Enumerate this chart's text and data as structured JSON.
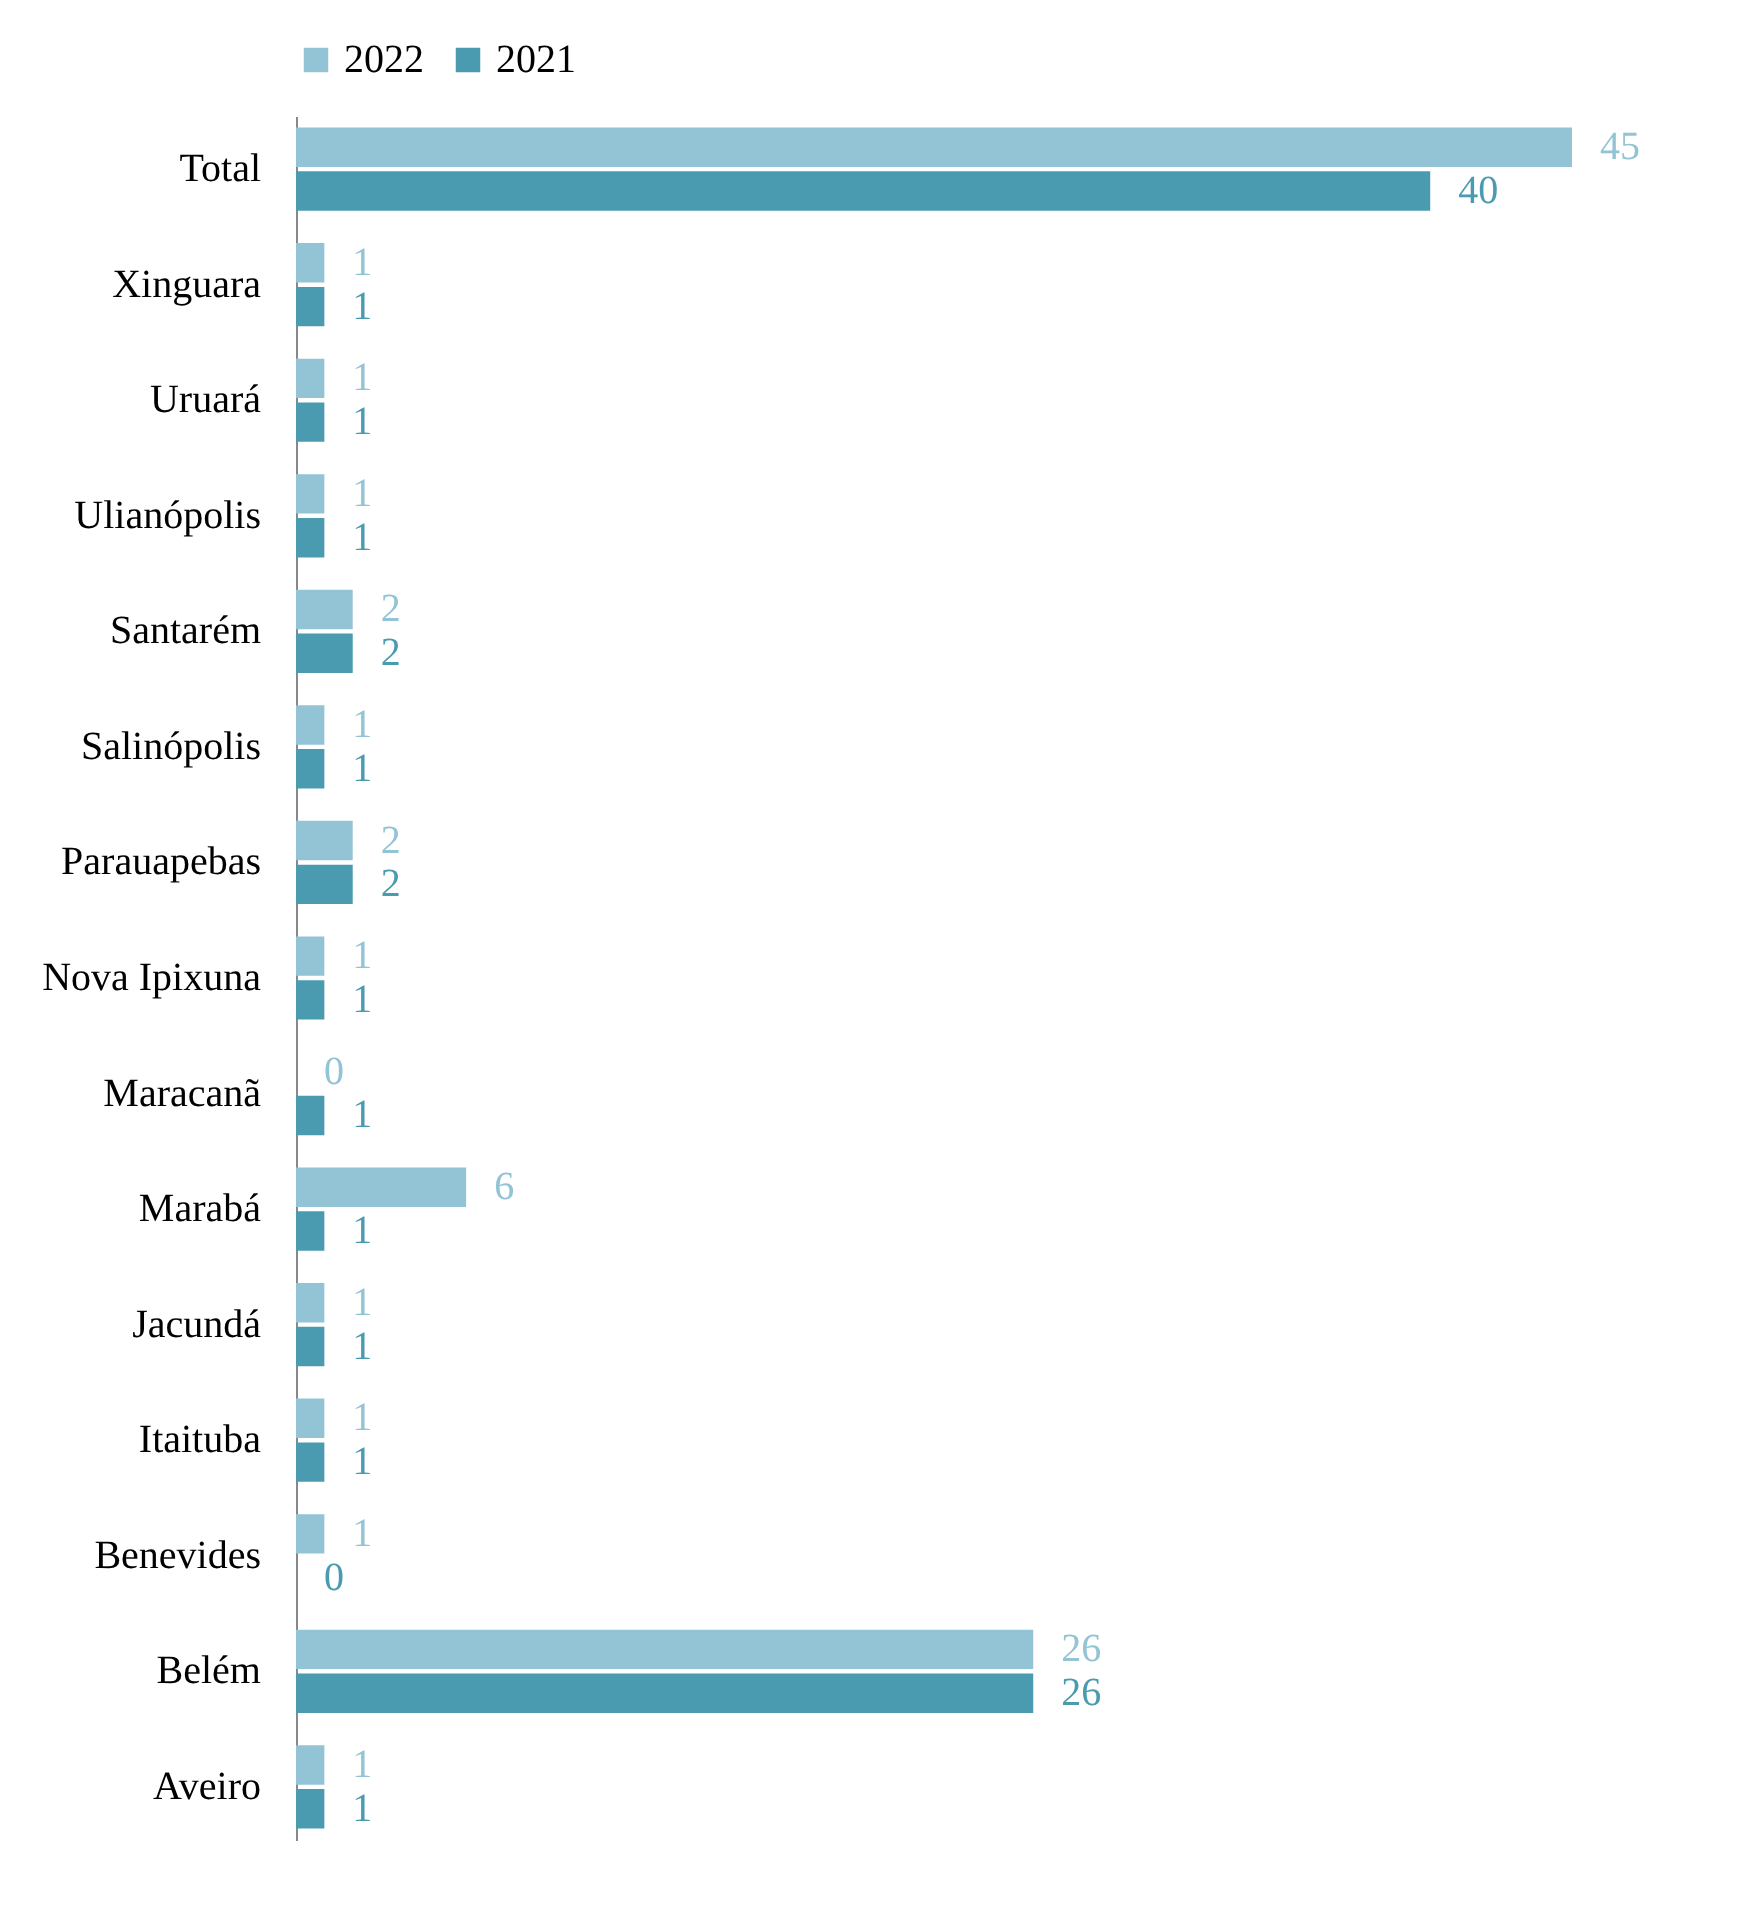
{
  "chart_data": {
    "type": "bar",
    "orientation": "horizontal",
    "data_labels": true,
    "legend": "top",
    "grid": false,
    "categories": [
      "Total",
      "Xinguara",
      "Uruará",
      "Ulianópolis",
      "Santarém",
      "Salinópolis",
      "Parauapebas",
      "Nova Ipixuna",
      "Maracanã",
      "Marabá",
      "Jacundá",
      "Itaituba",
      "Benevides",
      "Belém",
      "Aveiro"
    ],
    "series": [
      {
        "name": "2022",
        "color": "#93c4d5",
        "values": [
          45,
          1,
          1,
          1,
          2,
          1,
          2,
          1,
          0,
          6,
          1,
          1,
          1,
          26,
          1
        ]
      },
      {
        "name": "2021",
        "color": "#4a9bb0",
        "values": [
          40,
          1,
          1,
          1,
          2,
          1,
          2,
          1,
          1,
          1,
          1,
          1,
          0,
          26,
          1
        ]
      }
    ]
  }
}
